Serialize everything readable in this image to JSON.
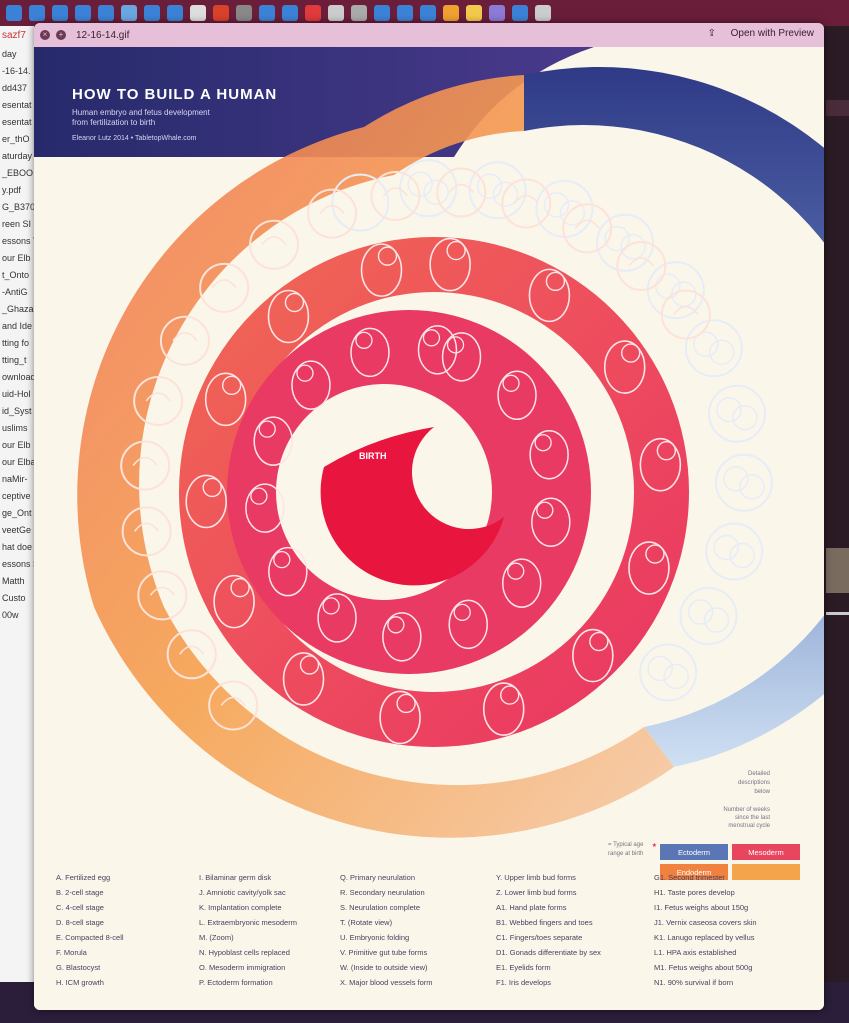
{
  "window": {
    "title": "12-16-14.gif",
    "open_with": "Open with Preview"
  },
  "sidebar": {
    "items": [
      "day",
      "-16-14.",
      "dd437",
      "esentat",
      "esentat",
      "er_thO",
      "aturday",
      "_EBOO",
      "y.pdf",
      "G_B370",
      "reen SI",
      "essons T",
      "our Elb",
      "t_Onto",
      "-AntiG",
      "_Ghaza",
      "and Ide",
      "tting fo",
      "tting_t",
      "ownload",
      "uid-Hol",
      "id_Syst",
      "uslims",
      "our Elb",
      "our Elba",
      "naMir-",
      "ceptive",
      "ge_Ont",
      "veetGe",
      "hat doe",
      "essons S",
      "Matth",
      "Custo",
      "00w"
    ]
  },
  "poster": {
    "title": "HOW TO BUILD A HUMAN",
    "subtitle1": "Human embryo and fetus development",
    "subtitle2": "from fertilization to birth",
    "credit": "Eleanor Lutz 2014 • TabletopWhale.com",
    "center_label": "BIRTH",
    "notes": {
      "detailed_line1": "Detailed",
      "detailed_line2": "descriptions",
      "detailed_line3": "below",
      "weeks_line1": "Number of weeks",
      "weeks_line2": "since the last",
      "weeks_line3": "menstrual cycle",
      "typical_line1": "= Typical age",
      "typical_line2": "range at birth"
    },
    "layers": [
      {
        "name": "Ectoderm",
        "color": "#5b76b4"
      },
      {
        "name": "Mesoderm",
        "color": "#e8455f"
      },
      {
        "name": "Endoderm",
        "color": "#f0813f"
      },
      {
        "name": "",
        "color": "#f4a54c"
      }
    ],
    "legend_columns": [
      [
        "A. Fertilized egg",
        "B. 2-cell stage",
        "C. 4-cell stage",
        "D. 8-cell stage",
        "E. Compacted 8-cell",
        "F. Morula",
        "G. Blastocyst",
        "H. ICM growth"
      ],
      [
        "I. Bilaminar germ disk",
        "J. Amniotic cavity/yolk sac",
        "K. Implantation complete",
        "L. Extraembryonic mesoderm",
        "M. (Zoom)",
        "N. Hypoblast cells replaced",
        "O. Mesoderm immigration",
        "P. Ectoderm formation"
      ],
      [
        "Q. Primary neurulation",
        "R. Secondary neurulation",
        "S. Neurulation complete",
        "T. (Rotate view)",
        "U. Embryonic folding",
        "V. Primitive gut tube forms",
        "W. (Inside to outside view)",
        "X. Major blood vessels form"
      ],
      [
        "Y. Upper limb bud forms",
        "Z. Lower limb bud forms",
        "A1. Hand plate forms",
        "B1. Webbed fingers and toes",
        "C1. Fingers/toes separate",
        "D1. Gonads differentiate by sex",
        "E1. Eyelids form",
        "F1. Iris develops"
      ],
      [
        "G1. Second trimester",
        "H1. Taste pores develop",
        "I1. Fetus weighs about 150g",
        "J1. Vernix caseosa covers skin",
        "K1. Lanugo replaced by vellus",
        "L1. HPA axis established",
        "M1. Fetus weighs about 500g",
        "N1. 90% survival if born"
      ]
    ],
    "colors": {
      "header": "#2e2a6e",
      "outer_blue": "#5b6fb0",
      "outer_orange": "#f08a4b",
      "inner_red": "#e8315a",
      "core": "#e8153f",
      "background": "#fbf6ea"
    }
  }
}
